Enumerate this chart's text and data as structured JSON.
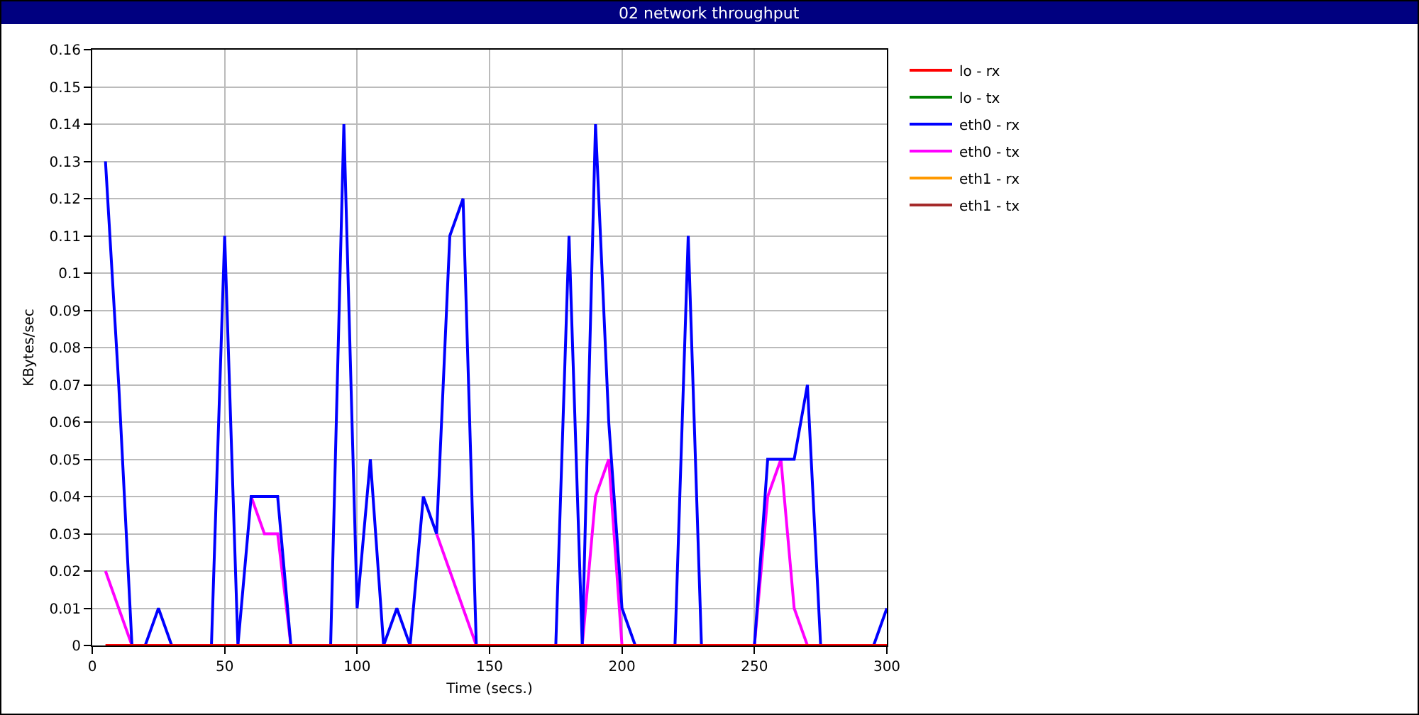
{
  "chart_data": {
    "type": "line",
    "title": "02 network throughput",
    "xlabel": "Time (secs.)",
    "ylabel": "KBytes/sec",
    "x": [
      5,
      10,
      15,
      20,
      25,
      30,
      35,
      40,
      45,
      50,
      55,
      60,
      65,
      70,
      75,
      80,
      85,
      90,
      95,
      100,
      105,
      110,
      115,
      120,
      125,
      130,
      135,
      140,
      145,
      150,
      155,
      160,
      165,
      170,
      175,
      180,
      185,
      190,
      195,
      200,
      205,
      210,
      215,
      220,
      225,
      230,
      235,
      240,
      245,
      250,
      255,
      260,
      265,
      270,
      275,
      280,
      285,
      290,
      295,
      300
    ],
    "series": [
      {
        "name": "lo - rx",
        "color": "#ff0000",
        "values": [
          0,
          0,
          0,
          0,
          0,
          0,
          0,
          0,
          0,
          0,
          0,
          0,
          0,
          0,
          0,
          0,
          0,
          0,
          0,
          0,
          0,
          0,
          0,
          0,
          0,
          0,
          0,
          0,
          0,
          0,
          0,
          0,
          0,
          0,
          0,
          0,
          0,
          0,
          0,
          0,
          0,
          0,
          0,
          0,
          0,
          0,
          0,
          0,
          0,
          0,
          0,
          0,
          0,
          0,
          0,
          0,
          0,
          0,
          0,
          0
        ]
      },
      {
        "name": "lo - tx",
        "color": "#008000",
        "values": [
          null,
          null,
          null,
          null,
          null,
          null,
          null,
          null,
          null,
          null,
          null,
          null,
          null,
          null,
          null,
          null,
          null,
          null,
          null,
          null,
          null,
          null,
          null,
          null,
          null,
          null,
          null,
          null,
          null,
          null,
          null,
          null,
          null,
          null,
          null,
          null,
          null,
          null,
          null,
          null,
          null,
          null,
          null,
          null,
          null,
          null,
          null,
          null,
          null,
          null,
          null,
          null,
          null,
          null,
          null,
          null,
          null,
          null,
          null,
          null
        ]
      },
      {
        "name": "eth0 - rx",
        "color": "#0000ff",
        "values": [
          0.13,
          0.07,
          0,
          0,
          0.01,
          0,
          0,
          0,
          0,
          0.11,
          0,
          0.04,
          0.04,
          0.04,
          0,
          0,
          0,
          0,
          0.14,
          0.01,
          0.05,
          0,
          0.01,
          0,
          0.04,
          0.03,
          0.11,
          0.12,
          0,
          0,
          0,
          0,
          0,
          0,
          0,
          0.11,
          0,
          0.14,
          0.06,
          0.01,
          0,
          0,
          0,
          0,
          0.11,
          0,
          0,
          0,
          0,
          0,
          0.05,
          0.05,
          0.05,
          0.07,
          0,
          0,
          0,
          0,
          0,
          0.01
        ]
      },
      {
        "name": "eth0 - tx",
        "color": "#ff00ff",
        "values": [
          0.02,
          0.01,
          0,
          null,
          null,
          null,
          null,
          null,
          null,
          null,
          null,
          0.04,
          0.03,
          0.03,
          0,
          null,
          null,
          null,
          null,
          null,
          null,
          null,
          null,
          null,
          null,
          0.03,
          0.02,
          0.01,
          0,
          null,
          null,
          null,
          null,
          null,
          null,
          null,
          0,
          0.04,
          0.05,
          0,
          null,
          null,
          null,
          null,
          null,
          null,
          null,
          null,
          null,
          0,
          0.04,
          0.05,
          0.01,
          0,
          null,
          null,
          null,
          null,
          null,
          null
        ]
      },
      {
        "name": "eth1 - rx",
        "color": "#ff9900",
        "values": [
          null,
          null,
          null,
          null,
          null,
          null,
          null,
          null,
          null,
          null,
          null,
          null,
          null,
          null,
          null,
          null,
          null,
          null,
          null,
          null,
          null,
          null,
          null,
          null,
          null,
          null,
          null,
          null,
          null,
          null,
          null,
          null,
          null,
          null,
          null,
          null,
          null,
          null,
          null,
          null,
          null,
          null,
          null,
          null,
          null,
          null,
          null,
          null,
          null,
          null,
          null,
          null,
          null,
          null,
          null,
          null,
          null,
          null,
          null,
          null
        ]
      },
      {
        "name": "eth1 - tx",
        "color": "#a52a2a",
        "values": [
          null,
          null,
          null,
          null,
          null,
          null,
          null,
          null,
          null,
          null,
          null,
          null,
          null,
          null,
          null,
          null,
          null,
          null,
          null,
          null,
          null,
          null,
          null,
          null,
          null,
          null,
          null,
          null,
          null,
          null,
          null,
          null,
          null,
          null,
          null,
          null,
          null,
          null,
          null,
          null,
          null,
          null,
          null,
          null,
          null,
          null,
          null,
          null,
          null,
          null,
          null,
          null,
          null,
          null,
          null,
          null,
          null,
          null,
          null,
          null
        ]
      }
    ],
    "xlim": [
      0,
      300
    ],
    "xticks": [
      0,
      50,
      100,
      150,
      200,
      250,
      300
    ],
    "ylim": [
      0,
      0.16
    ],
    "yticks": [
      0,
      0.01,
      0.02,
      0.03,
      0.04,
      0.05,
      0.06,
      0.07,
      0.08,
      0.09,
      0.1,
      0.11,
      0.12,
      0.13,
      0.14,
      0.15,
      0.16
    ],
    "grid": true,
    "legend": "top right",
    "marker": "none",
    "line_style": "solid"
  }
}
